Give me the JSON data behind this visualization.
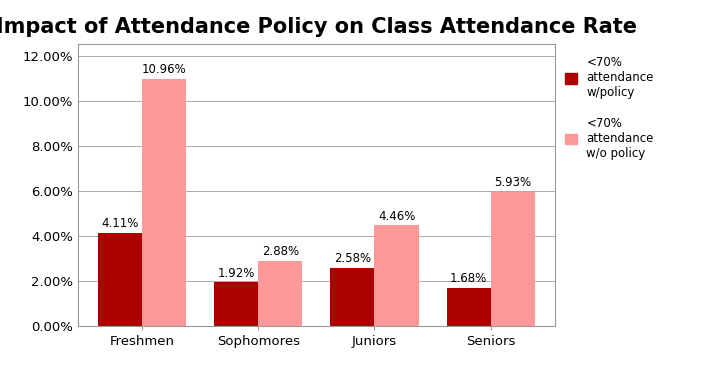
{
  "title": "Impact of Attendance Policy on Class Attendance Rate",
  "categories": [
    "Freshmen",
    "Sophomores",
    "Juniors",
    "Seniors"
  ],
  "series": [
    {
      "label": "<70%\nattendance\nw/policy",
      "color": "#AA0000",
      "values": [
        4.11,
        1.92,
        2.58,
        1.68
      ]
    },
    {
      "label": "<70%\nattendance\nw/o policy",
      "color": "#FF9999",
      "values": [
        10.96,
        2.88,
        4.46,
        5.93
      ]
    }
  ],
  "ylim": [
    0,
    12.5
  ],
  "yticks": [
    0.0,
    2.0,
    4.0,
    6.0,
    8.0,
    10.0,
    12.0
  ],
  "ytick_labels": [
    "0.00%",
    "2.00%",
    "4.00%",
    "6.00%",
    "8.00%",
    "10.00%",
    "12.00%"
  ],
  "bar_width": 0.38,
  "title_fontsize": 15,
  "tick_fontsize": 9.5,
  "label_fontsize": 8.5,
  "legend_fontsize": 8.5,
  "background_color": "#FFFFFF",
  "grid_color": "#AAAAAA"
}
